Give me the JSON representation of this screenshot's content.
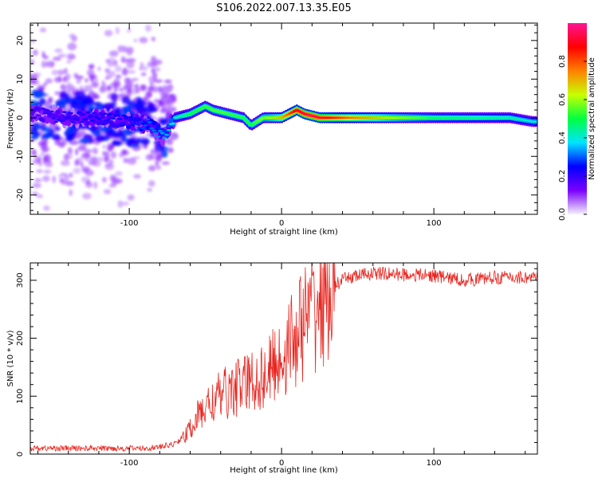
{
  "figure": {
    "title": "S106.2022.007.13.35.E05"
  },
  "chart_data": [
    {
      "type": "heatmap",
      "xlabel": "Height of straight line (km)",
      "ylabel": "Frequency (Hz)",
      "xlim": [
        -165,
        168
      ],
      "ylim": [
        -25,
        24.5
      ],
      "xticks": [
        -100,
        0,
        100
      ],
      "yticks": [
        -20,
        -10,
        0,
        10,
        20
      ],
      "colorscale": "rainbow (purple-blue-cyan-green-yellow-red-magenta)",
      "colorbar": {
        "label": "Normalized spectral amplitude",
        "range": [
          0,
          1
        ],
        "ticks": [
          "0.0",
          "0.2",
          "0.4",
          "0.6",
          "0.8"
        ],
        "colors": [
          "#f4f0ff",
          "#7a00ff",
          "#0000ff",
          "#00e5ff",
          "#00ff40",
          "#c8ff00",
          "#ff8000",
          "#ff0000",
          "#ff1493"
        ]
      },
      "ridge_frequency_hz": {
        "x": [
          -160,
          -140,
          -120,
          -100,
          -85,
          -78,
          -70,
          -60,
          -50,
          -45,
          -35,
          -25,
          -20,
          -12,
          -5,
          0,
          5,
          10,
          15,
          25,
          50,
          100,
          150,
          165
        ],
        "y": [
          1,
          0,
          0,
          -1,
          -2,
          -5,
          0,
          1,
          3,
          2,
          1,
          0,
          -2,
          0,
          0,
          0,
          1,
          2,
          1,
          0,
          0,
          0,
          0,
          -1
        ]
      },
      "ridge_amplitude": {
        "x": [
          -160,
          -100,
          -75,
          -60,
          -40,
          -20,
          0,
          10,
          20,
          50,
          100,
          150,
          165
        ],
        "y": [
          0.2,
          0.25,
          0.35,
          0.5,
          0.55,
          0.5,
          0.7,
          0.9,
          0.95,
          0.75,
          0.5,
          0.45,
          0.4
        ]
      }
    },
    {
      "type": "line",
      "xlabel": "Height of straight line (km)",
      "ylabel": "SNR (10 * v/v)",
      "xlim": [
        -165,
        168
      ],
      "ylim": [
        0,
        330
      ],
      "xticks": [
        -100,
        0,
        100
      ],
      "yticks": [
        0,
        100,
        200,
        300
      ],
      "series": [
        {
          "color": "#e8251f",
          "x": [
            -165,
            -150,
            -130,
            -110,
            -90,
            -80,
            -70,
            -62,
            -55,
            -48,
            -40,
            -30,
            -20,
            -10,
            -5,
            0,
            10,
            20,
            30,
            40,
            45,
            50,
            60,
            80,
            100,
            120,
            140,
            160,
            168
          ],
          "y": [
            10,
            10,
            10,
            10,
            10,
            12,
            18,
            35,
            65,
            85,
            100,
            115,
            125,
            135,
            155,
            165,
            210,
            245,
            280,
            300,
            305,
            308,
            312,
            310,
            308,
            300,
            305,
            305,
            305
          ]
        }
      ]
    }
  ]
}
